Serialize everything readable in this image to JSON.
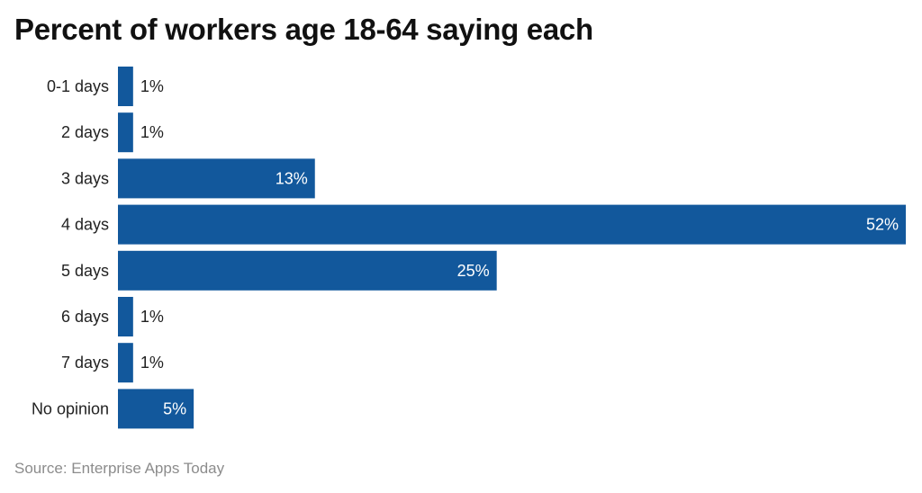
{
  "chart_data": {
    "type": "bar",
    "orientation": "horizontal",
    "title": "Percent of workers age 18-64 saying each",
    "categories": [
      "0-1 days",
      "2 days",
      "3 days",
      "4 days",
      "5 days",
      "6 days",
      "7 days",
      "No opinion"
    ],
    "values": [
      1,
      1,
      13,
      52,
      25,
      1,
      1,
      5
    ],
    "value_labels": [
      "1%",
      "1%",
      "13%",
      "52%",
      "25%",
      "1%",
      "1%",
      "5%"
    ],
    "xlim": [
      0,
      52
    ],
    "grid": false,
    "legend": "none",
    "bar_color": "#12589c",
    "inside_label_color": "#ffffff",
    "outside_label_color": "#222222"
  },
  "source": "Source: Enterprise Apps Today"
}
